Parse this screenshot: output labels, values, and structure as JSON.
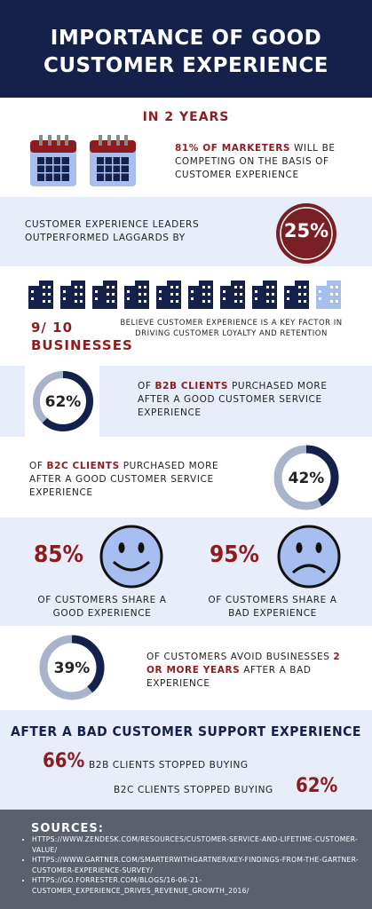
{
  "header": {
    "title": "IMPORTANCE OF GOOD CUSTOMER EXPERIENCE"
  },
  "two_years": {
    "heading": "IN 2 YEARS",
    "highlight": "81% OF MARKETERS",
    "text": "WILL BE COMPETING ON THE BASIS OF CUSTOMER EXPERIENCE"
  },
  "leaders": {
    "text": "CUSTOMER EXPERIENCE LEADERS OUTPERFORMED LAGGARDS BY",
    "stat": "25%"
  },
  "businesses": {
    "ratio": "9/ 10",
    "label": "BUSINESSES",
    "text": "BELIEVE CUSTOMER EXPERIENCE IS A KEY FACTOR IN DRIVING CUSTOMER LOYALTY AND RETENTION"
  },
  "b2b": {
    "stat": {
      "value": 62,
      "label": "62%"
    },
    "pre": "OF",
    "highlight": "B2B CLIENTS",
    "text": "PURCHASED MORE AFTER A GOOD CUSTOMER SERVICE EXPERIENCE"
  },
  "b2c": {
    "stat": {
      "value": 42,
      "label": "42%"
    },
    "pre": "OF",
    "highlight": "B2C CLIENTS",
    "text": "PURCHASED MORE AFTER A GOOD CUSTOMER SERVICE EXPERIENCE"
  },
  "share": {
    "good": {
      "stat": "85%",
      "text": "OF CUSTOMERS SHARE A GOOD EXPERIENCE"
    },
    "bad": {
      "stat": "95%",
      "text": "OF CUSTOMERS SHARE A BAD EXPERIENCE"
    }
  },
  "avoid": {
    "stat": {
      "value": 39,
      "label": "39%"
    },
    "pre": "OF CUSTOMERS AVOID BUSINESSES",
    "highlight": "2 OR MORE YEARS",
    "text": "AFTER A BAD EXPERIENCE"
  },
  "after_bad": {
    "heading": "AFTER A BAD CUSTOMER SUPPORT EXPERIENCE",
    "b2b": {
      "stat": "66%",
      "text": "B2B CLIENTS STOPPED BUYING"
    },
    "b2c": {
      "stat": "62%",
      "text": "B2C CLIENTS STOPPED BUYING"
    }
  },
  "sources": {
    "heading": "SOURCES:",
    "items": [
      "HTTPS://WWW.ZENDESK.COM/RESOURCES/CUSTOMER-SERVICE-AND-LIFETIME-CUSTOMER-VALUE/",
      "HTTPS://WWW.GARTNER.COM/SMARTERWITHGARTNER/KEY-FINDINGS-FROM-THE-GARTNER-CUSTOMER-EXPERIENCE-SURVEY/",
      "HTTPS://GO.FORRESTER.COM/BLOGS/16-06-21-CUSTOMER_EXPERIENCE_DRIVES_REVENUE_GROWTH_2016/"
    ]
  }
}
